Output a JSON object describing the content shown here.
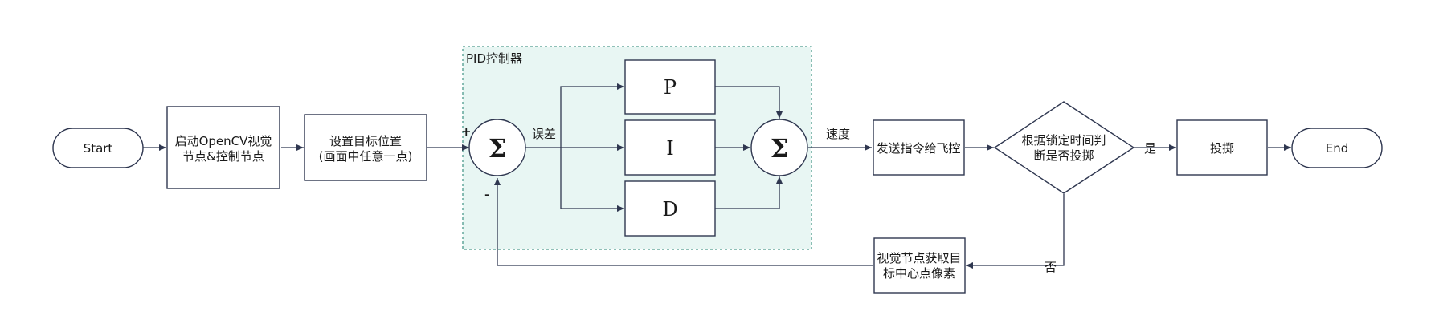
{
  "nodes": {
    "start": "Start",
    "init_line1": "启动OpenCV视觉",
    "init_line2": "节点&控制节点",
    "target_line1": "设置目标位置",
    "target_line2": "(画面中任意一点)",
    "pid_group": "PID控制器",
    "sum_symbol": "Σ",
    "p": "P",
    "i": "I",
    "d": "D",
    "send": "发送指令给飞控",
    "decision_line1": "根据锁定时间判",
    "decision_line2": "断是否投掷",
    "throw": "投掷",
    "end": "End",
    "feedback_line1": "视觉节点获取目",
    "feedback_line2": "标中心点像素"
  },
  "edges": {
    "plus": "+",
    "minus": "-",
    "error": "误差",
    "speed": "速度",
    "yes": "是",
    "no": "否"
  },
  "colors": {
    "stroke": "#2f3750",
    "pid_fill": "#e8f6f3",
    "pid_border": "#4a9a8c"
  }
}
